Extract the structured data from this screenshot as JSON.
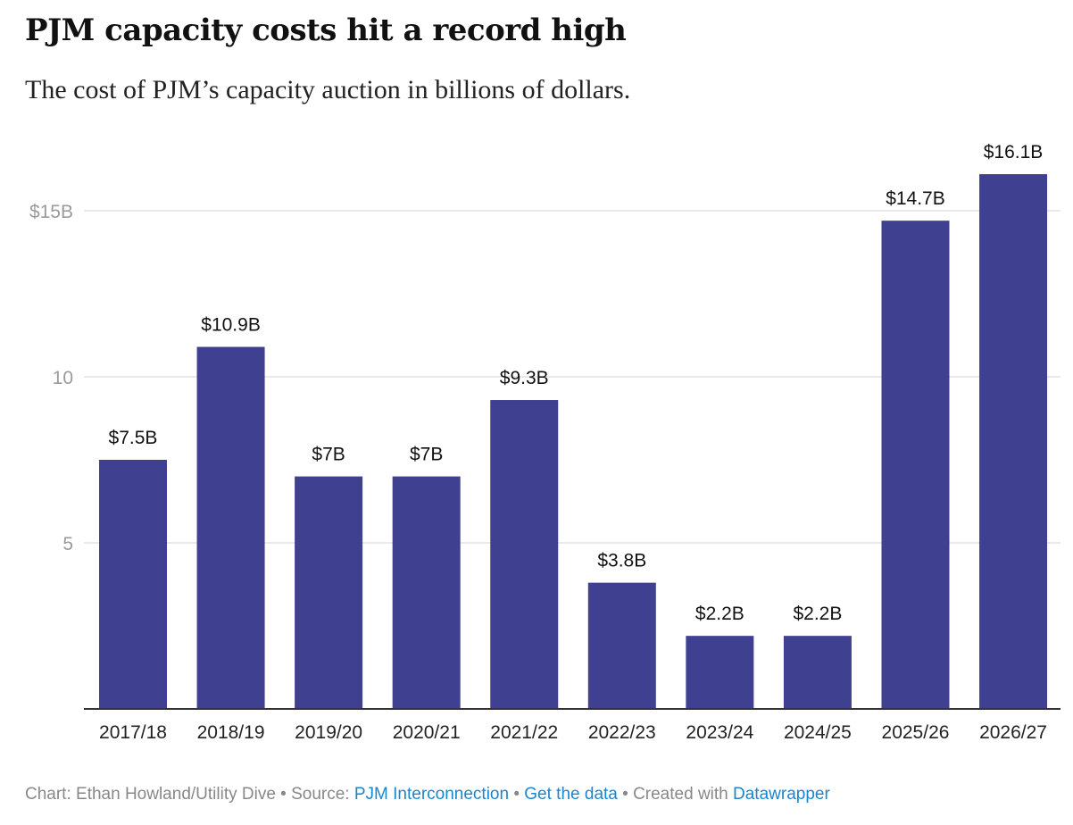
{
  "chart_data": {
    "type": "bar",
    "title": "PJM capacity costs hit a record high",
    "subtitle": "The cost of PJM’s capacity auction in billions of dollars.",
    "categories": [
      "2017/18",
      "2018/19",
      "2019/20",
      "2020/21",
      "2021/22",
      "2022/23",
      "2023/24",
      "2024/25",
      "2025/26",
      "2026/27"
    ],
    "values": [
      7.5,
      10.9,
      7,
      7,
      9.3,
      3.8,
      2.2,
      2.2,
      14.7,
      16.1
    ],
    "data_labels": [
      "$7.5B",
      "$10.9B",
      "$7B",
      "$7B",
      "$9.3B",
      "$3.8B",
      "$2.2B",
      "$2.2B",
      "$14.7B",
      "$16.1B"
    ],
    "yticks": [
      5,
      10,
      15
    ],
    "ytick_labels": [
      "5",
      "10",
      "$15B"
    ],
    "ylim": [
      0,
      15
    ],
    "xlabel": "",
    "ylabel": "",
    "grid": true,
    "bar_color": "#404090"
  },
  "footer": {
    "credit": "Chart: Ethan Howland/Utility Dive • Source: ",
    "source_link": "PJM Interconnection",
    "sep": " • ",
    "data_link": "Get the data",
    "created": " • Created with ",
    "dw_link": "Datawrapper"
  }
}
